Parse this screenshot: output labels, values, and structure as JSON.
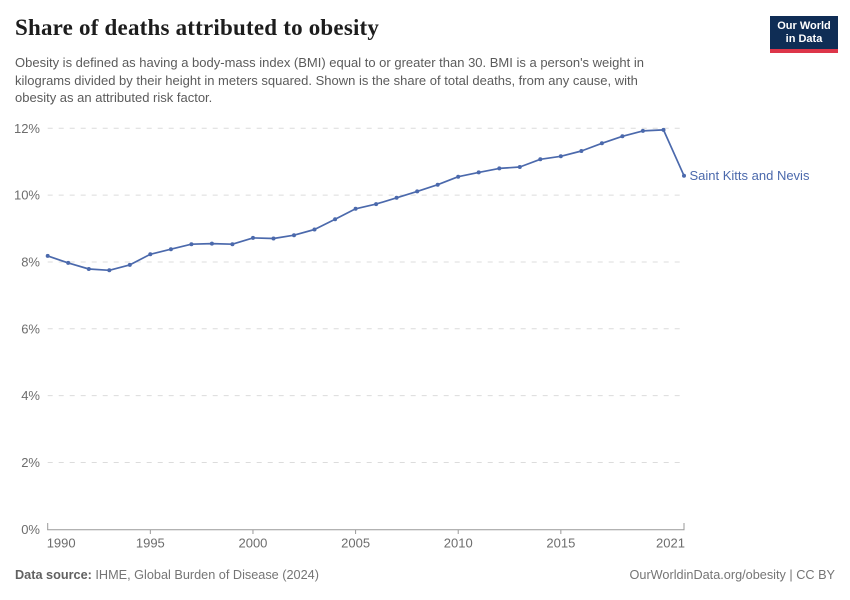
{
  "header": {
    "title": "Share of deaths attributed to obesity",
    "subtitle": "Obesity is defined as having a body-mass index (BMI) equal to or greater than 30. BMI is a person's weight in\nkilograms divided by their height in meters squared. Shown is the share of total deaths, from any cause, with\nobesity as an attributed risk factor.",
    "logo": {
      "line1": "Our World",
      "line2": "in Data"
    }
  },
  "chart_data": {
    "type": "line",
    "title": "Share of deaths attributed to obesity",
    "xlabel": "",
    "ylabel": "",
    "x": [
      1990,
      1991,
      1992,
      1993,
      1994,
      1995,
      1996,
      1997,
      1998,
      1999,
      2000,
      2001,
      2002,
      2003,
      2004,
      2005,
      2006,
      2007,
      2008,
      2009,
      2010,
      2011,
      2012,
      2013,
      2014,
      2015,
      2016,
      2017,
      2018,
      2019,
      2020,
      2021
    ],
    "series": [
      {
        "name": "Saint Kitts and Nevis",
        "values": [
          8.18,
          7.97,
          7.79,
          7.75,
          7.91,
          8.23,
          8.38,
          8.53,
          8.55,
          8.53,
          8.72,
          8.7,
          8.8,
          8.97,
          9.28,
          9.59,
          9.73,
          9.92,
          10.11,
          10.31,
          10.55,
          10.68,
          10.8,
          10.84,
          11.07,
          11.16,
          11.32,
          11.55,
          11.76,
          11.92,
          11.95,
          10.58
        ]
      }
    ],
    "ylim": [
      0,
      12
    ],
    "xlim": [
      1990,
      2021
    ],
    "yticks": [
      {
        "value": 0,
        "label": "0%"
      },
      {
        "value": 2,
        "label": "2%"
      },
      {
        "value": 4,
        "label": "4%"
      },
      {
        "value": 6,
        "label": "6%"
      },
      {
        "value": 8,
        "label": "8%"
      },
      {
        "value": 10,
        "label": "10%"
      },
      {
        "value": 12,
        "label": "12%"
      }
    ],
    "xticks": [
      {
        "value": 1990,
        "label": "1990"
      },
      {
        "value": 1995,
        "label": "1995"
      },
      {
        "value": 2000,
        "label": "2000"
      },
      {
        "value": 2005,
        "label": "2005"
      },
      {
        "value": 2010,
        "label": "2010"
      },
      {
        "value": 2015,
        "label": "2015"
      },
      {
        "value": 2021,
        "label": "2021"
      }
    ],
    "grid": "horizontal-dashed",
    "legend": "entity label at line end",
    "markers": true
  },
  "colors": {
    "line": "#4b69ac",
    "grid": "#dcdcdc",
    "axis": "#999999",
    "tick_text": "#6d6d6d",
    "logo_bg": "#0f2d55",
    "logo_accent": "#dd3549"
  },
  "footer": {
    "datasource_label": "Data source:",
    "datasource_value": "IHME, Global Burden of Disease (2024)",
    "url": "OurWorldinData.org/obesity",
    "separator": " | ",
    "license": "CC BY"
  }
}
